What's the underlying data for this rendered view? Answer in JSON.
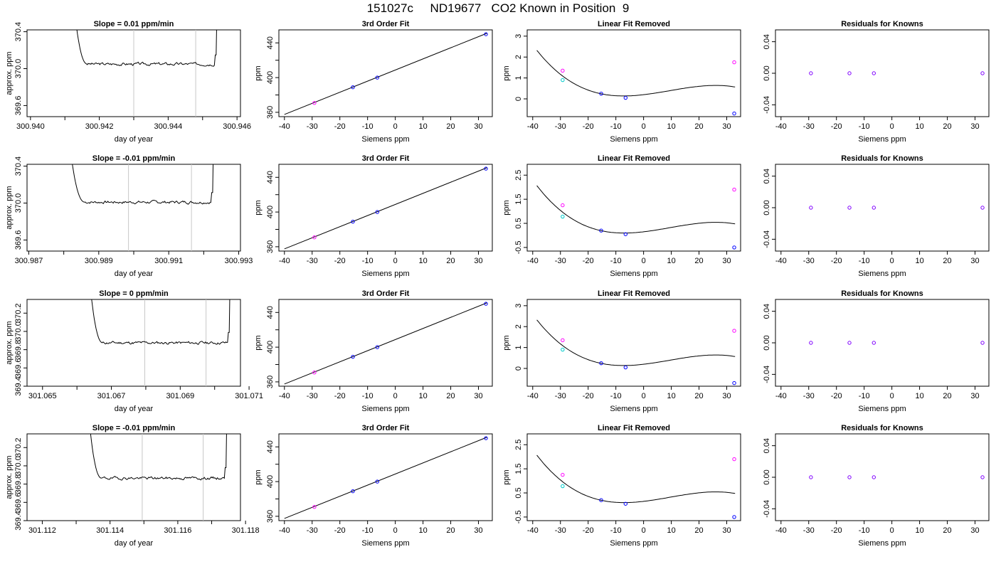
{
  "page_title": "151027c     ND19677   CO2 Known in Position  9",
  "chart_data": [
    {
      "type": "line",
      "title": "Slope =  0.01  ppm/min",
      "xlabel": "day of year",
      "ylabel": "approx. ppm",
      "xlim": [
        300.9399,
        300.9461
      ],
      "ylim": [
        369.48,
        370.42
      ],
      "xticks": [
        300.94,
        300.941,
        300.942,
        300.943,
        300.944,
        300.945,
        300.946
      ],
      "xtick_labels": [
        "300.940",
        "",
        "300.942",
        "",
        "300.944",
        "",
        "300.946"
      ],
      "yticks": [
        369.6,
        370.0,
        370.4
      ],
      "ytick_labels": [
        "369.6",
        "370.0",
        "370.4"
      ],
      "vlines": [
        300.943,
        300.9448
      ],
      "trace": {
        "start": 300.94126,
        "end": 300.94542,
        "flat": 370.05,
        "steady_from": 300.94165,
        "seed": 3,
        "noise": 0.012
      }
    },
    {
      "type": "scatter",
      "title": "3rd Order Fit",
      "xlabel": "Siemens ppm",
      "ylabel": "ppm",
      "xlim": [
        -42,
        35
      ],
      "ylim": [
        355,
        455
      ],
      "xticks": [
        -40,
        -30,
        -20,
        -10,
        0,
        10,
        20,
        30
      ],
      "xtick_labels": [
        "-40",
        "-30",
        "-20",
        "-10",
        "0",
        "10",
        "20",
        "30"
      ],
      "yticks": [
        360,
        380,
        400,
        420,
        440
      ],
      "ytick_labels": [
        "360",
        "",
        "400",
        "",
        "440"
      ],
      "curve": {
        "kind": "line",
        "x": [
          -40,
          33
        ],
        "y": [
          357.5,
          451
        ]
      },
      "points": [
        {
          "x": -29.2,
          "y": 370.8,
          "color": "#ff00ff"
        },
        {
          "x": -15.3,
          "y": 388.9,
          "color": "#0000ff"
        },
        {
          "x": -6.5,
          "y": 400.0,
          "color": "#0000ff"
        },
        {
          "x": 32.7,
          "y": 450.0,
          "color": "#0000ff"
        }
      ]
    },
    {
      "type": "scatter",
      "title": "Linear Fit Removed",
      "xlabel": "Siemens ppm",
      "ylabel": "ppm",
      "xlim": [
        -42,
        35
      ],
      "ylim": [
        -0.85,
        3.3
      ],
      "xticks": [
        -40,
        -30,
        -20,
        -10,
        0,
        10,
        20,
        30
      ],
      "xtick_labels": [
        "-40",
        "-30",
        "-20",
        "-10",
        "0",
        "10",
        "20",
        "30"
      ],
      "yticks": [
        0,
        1,
        2,
        3
      ],
      "ytick_labels": [
        "0",
        "1",
        "2",
        "3"
      ],
      "curve": {
        "kind": "cubic",
        "a": 0.2,
        "b": 0.0155,
        "c": 0.000775,
        "d": -2.75e-05,
        "from": -38.5,
        "to": 33
      },
      "points": [
        {
          "x": -29.2,
          "y": 1.35,
          "color": "#ff00ff"
        },
        {
          "x": -29.2,
          "y": 0.9,
          "color": "#00cccc"
        },
        {
          "x": -15.3,
          "y": 0.25,
          "color": "#0000ff"
        },
        {
          "x": -6.5,
          "y": 0.05,
          "color": "#0000ff"
        },
        {
          "x": 32.7,
          "y": 1.75,
          "color": "#ff00ff"
        },
        {
          "x": 32.7,
          "y": -0.7,
          "color": "#0000ff"
        }
      ]
    },
    {
      "type": "scatter",
      "title": "Residuals for Knowns",
      "xlabel": "Siemens ppm",
      "ylabel": "",
      "xlim": [
        -42,
        35
      ],
      "ylim": [
        -0.055,
        0.055
      ],
      "xticks": [
        -40,
        -30,
        -20,
        -10,
        0,
        10,
        20,
        30
      ],
      "xtick_labels": [
        "-40",
        "-30",
        "-20",
        "-10",
        "0",
        "10",
        "20",
        "30"
      ],
      "yticks": [
        -0.04,
        0.0,
        0.04
      ],
      "ytick_labels": [
        "-0.04",
        "0.00",
        "0.04"
      ],
      "points": [
        {
          "x": -29.2,
          "y": 0,
          "color": "#8000ff"
        },
        {
          "x": -15.3,
          "y": 0,
          "color": "#8000ff"
        },
        {
          "x": -6.5,
          "y": 0,
          "color": "#8000ff"
        },
        {
          "x": 32.7,
          "y": 0,
          "color": "#8000ff"
        }
      ]
    },
    {
      "type": "line",
      "title": "Slope =  -0.01  ppm/min",
      "xlabel": "day of year",
      "ylabel": "approx. ppm",
      "xlim": [
        300.98695,
        300.99305
      ],
      "ylim": [
        369.48,
        370.42
      ],
      "xticks": [
        300.987,
        300.988,
        300.989,
        300.99,
        300.991,
        300.992,
        300.993
      ],
      "xtick_labels": [
        "300.987",
        "",
        "300.989",
        "",
        "300.991",
        "",
        "300.993"
      ],
      "yticks": [
        369.6,
        370.0,
        370.4
      ],
      "ytick_labels": [
        "369.6",
        "370.0",
        "370.4"
      ],
      "vlines": [
        300.98985,
        300.99165
      ],
      "trace": {
        "start": 300.98815,
        "end": 300.99228,
        "flat": 370.01,
        "steady_from": 300.9886,
        "seed": 7,
        "noise": 0.012
      }
    },
    {
      "type": "scatter",
      "title": "3rd Order Fit",
      "xlabel": "Siemens ppm",
      "ylabel": "ppm",
      "xlim": [
        -42,
        35
      ],
      "ylim": [
        355,
        455
      ],
      "xticks": [
        -40,
        -30,
        -20,
        -10,
        0,
        10,
        20,
        30
      ],
      "xtick_labels": [
        "-40",
        "-30",
        "-20",
        "-10",
        "0",
        "10",
        "20",
        "30"
      ],
      "yticks": [
        360,
        380,
        400,
        420,
        440
      ],
      "ytick_labels": [
        "360",
        "",
        "400",
        "",
        "440"
      ],
      "curve": {
        "kind": "line",
        "x": [
          -40,
          33
        ],
        "y": [
          357.5,
          451
        ]
      },
      "points": [
        {
          "x": -29.2,
          "y": 370.8,
          "color": "#ff00ff"
        },
        {
          "x": -15.3,
          "y": 388.9,
          "color": "#0000ff"
        },
        {
          "x": -6.5,
          "y": 400.0,
          "color": "#0000ff"
        },
        {
          "x": 32.7,
          "y": 450.0,
          "color": "#0000ff"
        }
      ]
    },
    {
      "type": "scatter",
      "title": "Linear Fit Removed",
      "xlabel": "Siemens ppm",
      "ylabel": "ppm",
      "xlim": [
        -42,
        35
      ],
      "ylim": [
        -0.65,
        2.95
      ],
      "xticks": [
        -40,
        -30,
        -20,
        -10,
        0,
        10,
        20,
        30
      ],
      "xtick_labels": [
        "-40",
        "-30",
        "-20",
        "-10",
        "0",
        "10",
        "20",
        "30"
      ],
      "yticks": [
        -0.5,
        0.5,
        1.5,
        2.5
      ],
      "ytick_labels": [
        "-0.5",
        "0.5",
        "1.5",
        "2.5"
      ],
      "curve": {
        "kind": "cubic",
        "a": 0.15,
        "b": 0.0135,
        "c": 0.0007,
        "d": -2.45e-05,
        "from": -38.5,
        "to": 33
      },
      "points": [
        {
          "x": -29.2,
          "y": 1.25,
          "color": "#ff00ff"
        },
        {
          "x": -29.2,
          "y": 0.78,
          "color": "#00cccc"
        },
        {
          "x": -15.3,
          "y": 0.2,
          "color": "#0000ff"
        },
        {
          "x": -6.5,
          "y": 0.05,
          "color": "#0000ff"
        },
        {
          "x": 32.7,
          "y": 1.9,
          "color": "#ff00ff"
        },
        {
          "x": 32.7,
          "y": -0.5,
          "color": "#0000ff"
        }
      ]
    },
    {
      "type": "scatter",
      "title": "Residuals for Knowns",
      "xlabel": "Siemens ppm",
      "ylabel": "",
      "xlim": [
        -42,
        35
      ],
      "ylim": [
        -0.055,
        0.055
      ],
      "xticks": [
        -40,
        -30,
        -20,
        -10,
        0,
        10,
        20,
        30
      ],
      "xtick_labels": [
        "-40",
        "-30",
        "-20",
        "-10",
        "0",
        "10",
        "20",
        "30"
      ],
      "yticks": [
        -0.04,
        0.0,
        0.04
      ],
      "ytick_labels": [
        "-0.04",
        "0.00",
        "0.04"
      ],
      "points": [
        {
          "x": -29.2,
          "y": 0,
          "color": "#8000ff"
        },
        {
          "x": -15.3,
          "y": 0,
          "color": "#8000ff"
        },
        {
          "x": -6.5,
          "y": 0,
          "color": "#8000ff"
        },
        {
          "x": 32.7,
          "y": 0,
          "color": "#8000ff"
        }
      ]
    },
    {
      "type": "line",
      "title": "Slope =  0  ppm/min",
      "xlabel": "day of year",
      "ylabel": "approx. ppm",
      "xlim": [
        301.06455,
        301.07075
      ],
      "ylim": [
        369.4,
        370.35
      ],
      "xticks": [
        301.065,
        301.066,
        301.067,
        301.068,
        301.069,
        301.07,
        301.071
      ],
      "xtick_labels": [
        "301.065",
        "",
        "301.067",
        "",
        "301.069",
        "",
        "301.071"
      ],
      "yticks": [
        369.4,
        369.6,
        369.8,
        370.0,
        370.2
      ],
      "ytick_labels": [
        "369.4",
        "369.6",
        "369.8",
        "370.0",
        "370.2"
      ],
      "vlines": [
        301.06797,
        301.06975
      ],
      "trace": {
        "start": 301.06635,
        "end": 301.07045,
        "flat": 369.875,
        "steady_from": 301.06675,
        "seed": 11,
        "noise": 0.012
      }
    },
    {
      "type": "scatter",
      "title": "3rd Order Fit",
      "xlabel": "Siemens ppm",
      "ylabel": "ppm",
      "xlim": [
        -42,
        35
      ],
      "ylim": [
        355,
        455
      ],
      "xticks": [
        -40,
        -30,
        -20,
        -10,
        0,
        10,
        20,
        30
      ],
      "xtick_labels": [
        "-40",
        "-30",
        "-20",
        "-10",
        "0",
        "10",
        "20",
        "30"
      ],
      "yticks": [
        360,
        380,
        400,
        420,
        440
      ],
      "ytick_labels": [
        "360",
        "",
        "400",
        "",
        "440"
      ],
      "curve": {
        "kind": "line",
        "x": [
          -40,
          33
        ],
        "y": [
          357.5,
          451
        ]
      },
      "points": [
        {
          "x": -29.2,
          "y": 370.8,
          "color": "#ff00ff"
        },
        {
          "x": -15.3,
          "y": 388.9,
          "color": "#0000ff"
        },
        {
          "x": -6.5,
          "y": 400.0,
          "color": "#0000ff"
        },
        {
          "x": 32.7,
          "y": 450.0,
          "color": "#0000ff"
        }
      ]
    },
    {
      "type": "scatter",
      "title": "Linear Fit Removed",
      "xlabel": "Siemens ppm",
      "ylabel": "ppm",
      "xlim": [
        -42,
        35
      ],
      "ylim": [
        -0.85,
        3.3
      ],
      "xticks": [
        -40,
        -30,
        -20,
        -10,
        0,
        10,
        20,
        30
      ],
      "xtick_labels": [
        "-40",
        "-30",
        "-20",
        "-10",
        "0",
        "10",
        "20",
        "30"
      ],
      "yticks": [
        0,
        1,
        2,
        3
      ],
      "ytick_labels": [
        "0",
        "1",
        "2",
        "3"
      ],
      "curve": {
        "kind": "cubic",
        "a": 0.2,
        "b": 0.0155,
        "c": 0.000775,
        "d": -2.75e-05,
        "from": -38.5,
        "to": 33
      },
      "points": [
        {
          "x": -29.2,
          "y": 1.35,
          "color": "#ff00ff"
        },
        {
          "x": -29.2,
          "y": 0.9,
          "color": "#00cccc"
        },
        {
          "x": -15.3,
          "y": 0.25,
          "color": "#0000ff"
        },
        {
          "x": -6.5,
          "y": 0.05,
          "color": "#0000ff"
        },
        {
          "x": 32.7,
          "y": 1.8,
          "color": "#ff00ff"
        },
        {
          "x": 32.7,
          "y": -0.7,
          "color": "#0000ff"
        }
      ]
    },
    {
      "type": "scatter",
      "title": "Residuals for Knowns",
      "xlabel": "Siemens ppm",
      "ylabel": "",
      "xlim": [
        -42,
        35
      ],
      "ylim": [
        -0.055,
        0.055
      ],
      "xticks": [
        -40,
        -30,
        -20,
        -10,
        0,
        10,
        20,
        30
      ],
      "xtick_labels": [
        "-40",
        "-30",
        "-20",
        "-10",
        "0",
        "10",
        "20",
        "30"
      ],
      "yticks": [
        -0.04,
        0.0,
        0.04
      ],
      "ytick_labels": [
        "-0.04",
        "0.00",
        "0.04"
      ],
      "points": [
        {
          "x": -29.2,
          "y": 0,
          "color": "#8000ff"
        },
        {
          "x": -15.3,
          "y": 0,
          "color": "#8000ff"
        },
        {
          "x": -6.5,
          "y": 0,
          "color": "#8000ff"
        },
        {
          "x": 32.7,
          "y": 0,
          "color": "#8000ff"
        }
      ]
    },
    {
      "type": "line",
      "title": "Slope =  -0.01  ppm/min",
      "xlabel": "day of year",
      "ylabel": "approx. ppm",
      "xlim": [
        301.11155,
        301.11785
      ],
      "ylim": [
        369.4,
        370.35
      ],
      "xticks": [
        301.112,
        301.113,
        301.114,
        301.115,
        301.116,
        301.117,
        301.118
      ],
      "xtick_labels": [
        "301.112",
        "",
        "301.114",
        "",
        "301.116",
        "",
        "301.118"
      ],
      "yticks": [
        369.4,
        369.6,
        369.8,
        370.0,
        370.2
      ],
      "ytick_labels": [
        "369.4",
        "369.6",
        "369.8",
        "370.0",
        "370.2"
      ],
      "vlines": [
        301.11495,
        301.11675
      ],
      "trace": {
        "start": 301.11335,
        "end": 301.11745,
        "flat": 369.865,
        "steady_from": 301.11375,
        "seed": 19,
        "noise": 0.012
      }
    },
    {
      "type": "scatter",
      "title": "3rd Order Fit",
      "xlabel": "Siemens ppm",
      "ylabel": "ppm",
      "xlim": [
        -42,
        35
      ],
      "ylim": [
        355,
        455
      ],
      "xticks": [
        -40,
        -30,
        -20,
        -10,
        0,
        10,
        20,
        30
      ],
      "xtick_labels": [
        "-40",
        "-30",
        "-20",
        "-10",
        "0",
        "10",
        "20",
        "30"
      ],
      "yticks": [
        360,
        380,
        400,
        420,
        440
      ],
      "ytick_labels": [
        "360",
        "",
        "400",
        "",
        "440"
      ],
      "curve": {
        "kind": "line",
        "x": [
          -40,
          33
        ],
        "y": [
          357.5,
          451
        ]
      },
      "points": [
        {
          "x": -29.2,
          "y": 370.8,
          "color": "#ff00ff"
        },
        {
          "x": -15.3,
          "y": 388.9,
          "color": "#0000ff"
        },
        {
          "x": -6.5,
          "y": 400.0,
          "color": "#0000ff"
        },
        {
          "x": 32.7,
          "y": 450.0,
          "color": "#0000ff"
        }
      ]
    },
    {
      "type": "scatter",
      "title": "Linear Fit Removed",
      "xlabel": "Siemens ppm",
      "ylabel": "ppm",
      "xlim": [
        -42,
        35
      ],
      "ylim": [
        -0.65,
        2.95
      ],
      "xticks": [
        -40,
        -30,
        -20,
        -10,
        0,
        10,
        20,
        30
      ],
      "xtick_labels": [
        "-40",
        "-30",
        "-20",
        "-10",
        "0",
        "10",
        "20",
        "30"
      ],
      "yticks": [
        -0.5,
        0.5,
        1.5,
        2.5
      ],
      "ytick_labels": [
        "-0.5",
        "0.5",
        "1.5",
        "2.5"
      ],
      "curve": {
        "kind": "cubic",
        "a": 0.15,
        "b": 0.0135,
        "c": 0.0007,
        "d": -2.45e-05,
        "from": -38.5,
        "to": 33
      },
      "points": [
        {
          "x": -29.2,
          "y": 1.25,
          "color": "#ff00ff"
        },
        {
          "x": -29.2,
          "y": 0.78,
          "color": "#00cccc"
        },
        {
          "x": -15.3,
          "y": 0.2,
          "color": "#0000ff"
        },
        {
          "x": -6.5,
          "y": 0.05,
          "color": "#0000ff"
        },
        {
          "x": 32.7,
          "y": 1.9,
          "color": "#ff00ff"
        },
        {
          "x": 32.7,
          "y": -0.5,
          "color": "#0000ff"
        }
      ]
    },
    {
      "type": "scatter",
      "title": "Residuals for Knowns",
      "xlabel": "Siemens ppm",
      "ylabel": "",
      "xlim": [
        -42,
        35
      ],
      "ylim": [
        -0.055,
        0.055
      ],
      "xticks": [
        -40,
        -30,
        -20,
        -10,
        0,
        10,
        20,
        30
      ],
      "xtick_labels": [
        "-40",
        "-30",
        "-20",
        "-10",
        "0",
        "10",
        "20",
        "30"
      ],
      "yticks": [
        -0.04,
        0.0,
        0.04
      ],
      "ytick_labels": [
        "-0.04",
        "0.00",
        "0.04"
      ],
      "points": [
        {
          "x": -29.2,
          "y": 0,
          "color": "#8000ff"
        },
        {
          "x": -15.3,
          "y": 0,
          "color": "#8000ff"
        },
        {
          "x": -6.5,
          "y": 0,
          "color": "#8000ff"
        },
        {
          "x": 32.7,
          "y": 0,
          "color": "#8000ff"
        }
      ]
    }
  ]
}
